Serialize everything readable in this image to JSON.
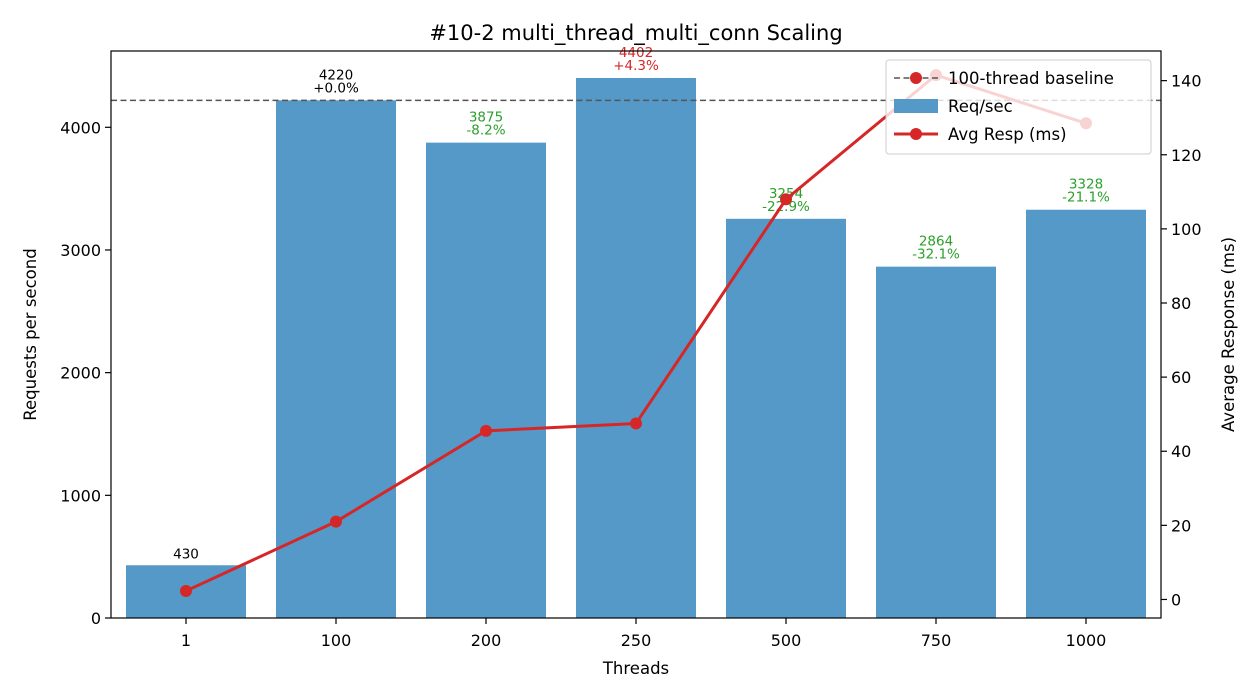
{
  "chart_data": {
    "type": "bar",
    "title": "#10-2 multi_thread_multi_conn Scaling",
    "xlabel": "Threads",
    "ylabel": "Requests per second",
    "y2label": "Average Response (ms)",
    "categories": [
      "1",
      "100",
      "200",
      "250",
      "500",
      "750",
      "1000"
    ],
    "ylim": [
      0,
      4622
    ],
    "y2lim": [
      -5,
      148
    ],
    "yticks": [
      0,
      1000,
      2000,
      3000,
      4000
    ],
    "y2ticks": [
      0,
      20,
      40,
      60,
      80,
      100,
      120,
      140
    ],
    "baseline": {
      "name": "100-thread baseline",
      "value": 4220,
      "color": "#555555"
    },
    "series": [
      {
        "name": "Req/sec",
        "kind": "bar",
        "axis": "left",
        "color": "#5599c8",
        "values": [
          430,
          4220,
          3875,
          4402,
          3254,
          2864,
          3328
        ],
        "labels": [
          "430",
          "4220",
          "3875",
          "4402",
          "3254",
          "2864",
          "3328"
        ],
        "pct_labels": [
          "",
          "+0.0%",
          "-8.2%",
          "+4.3%",
          "-22.9%",
          "-32.1%",
          "-21.1%"
        ],
        "label_colors": [
          "#000000",
          "#000000",
          "#2ca02c",
          "#d62728",
          "#2ca02c",
          "#2ca02c",
          "#2ca02c"
        ]
      },
      {
        "name": "Avg Resp (ms)",
        "kind": "line",
        "axis": "right",
        "color": "#d62728",
        "values": [
          2.3,
          21,
          45.5,
          47.5,
          108,
          141.5,
          128.5
        ]
      }
    ],
    "legend_position": "upper right",
    "grid": false
  }
}
